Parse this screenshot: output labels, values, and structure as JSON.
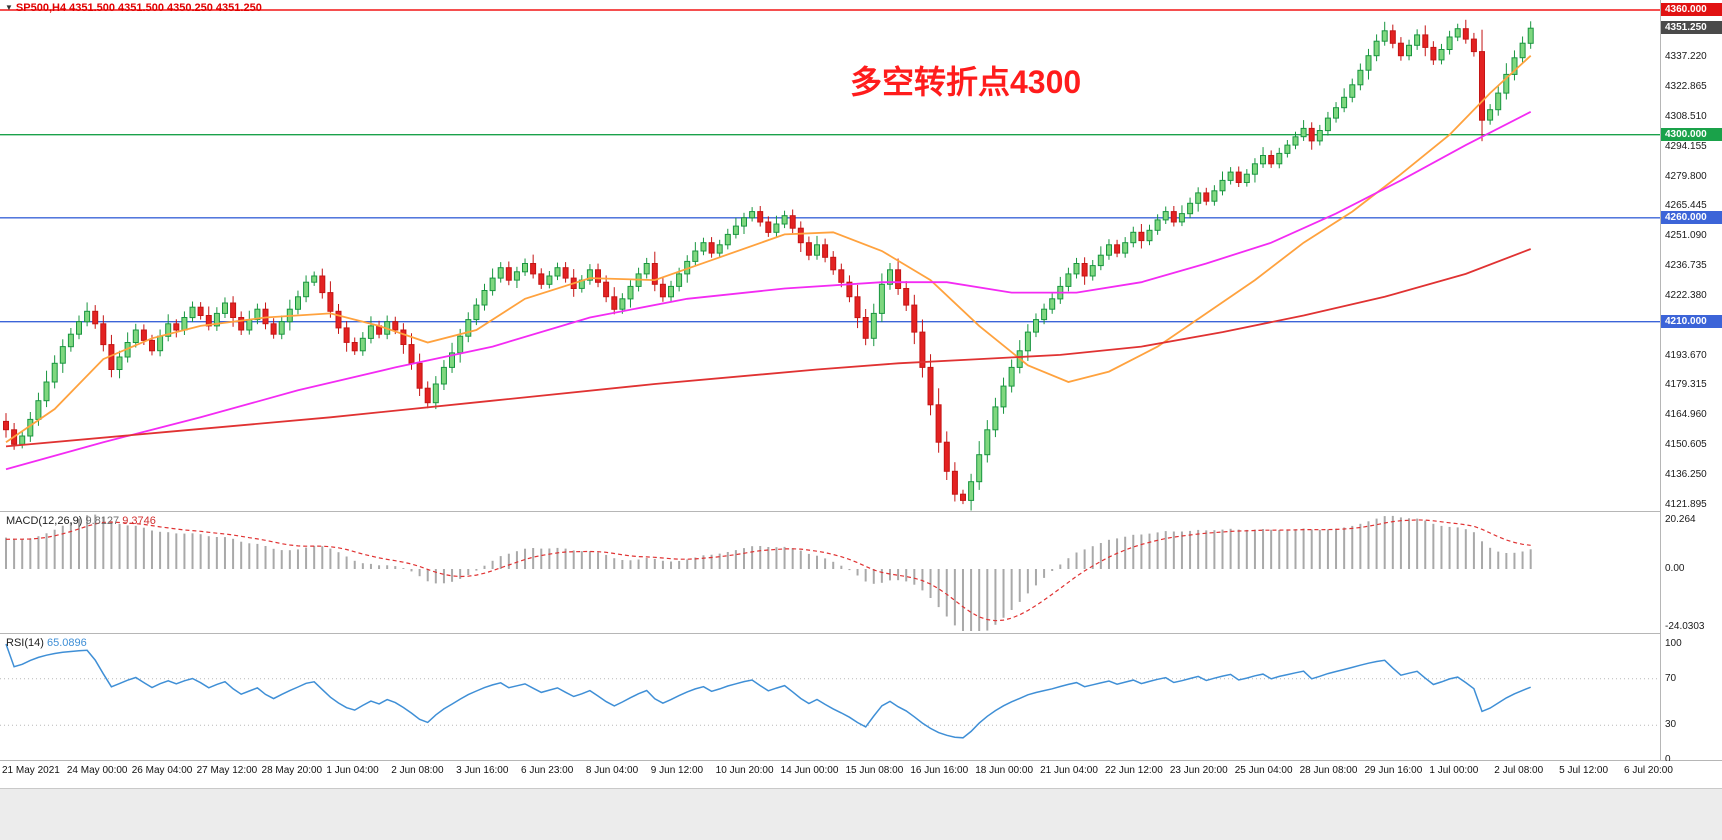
{
  "header": {
    "ohlc_line": "SP500,H4 4351.500 4351.500 4350.250 4351.250",
    "marker_icon": "▼"
  },
  "annotation": {
    "text": "多空转折点4300",
    "color": "#ff1c1c"
  },
  "chart_data": {
    "type": "candlestick",
    "symbol": "SP500",
    "timeframe": "H4",
    "current_bar": {
      "open": 4351.5,
      "high": 4351.5,
      "low": 4350.25,
      "close": 4351.25
    },
    "first_open": 4162,
    "closes": [
      4158,
      4151,
      4155,
      4163,
      4172,
      4181,
      4190,
      4198,
      4204,
      4210,
      4215,
      4209,
      4199,
      4187,
      4193,
      4200,
      4206,
      4201,
      4196,
      4203,
      4209,
      4206,
      4212,
      4217,
      4213,
      4208,
      4214,
      4219,
      4212,
      4206,
      4211,
      4216,
      4209,
      4204,
      4210,
      4216,
      4222,
      4229,
      4232,
      4224,
      4215,
      4207,
      4200,
      4196,
      4202,
      4208,
      4204,
      4210,
      4206,
      4199,
      4190,
      4178,
      4171,
      4180,
      4188,
      4195,
      4203,
      4211,
      4218,
      4225,
      4231,
      4236,
      4230,
      4234,
      4238,
      4233,
      4228,
      4232,
      4236,
      4231,
      4226,
      4230,
      4235,
      4229,
      4222,
      4216,
      4221,
      4227,
      4233,
      4238,
      4228,
      4222,
      4227,
      4233,
      4239,
      4244,
      4248,
      4243,
      4247,
      4252,
      4256,
      4260,
      4263,
      4258,
      4253,
      4257,
      4261,
      4255,
      4248,
      4242,
      4247,
      4241,
      4235,
      4229,
      4222,
      4212,
      4202,
      4214,
      4228,
      4235,
      4226,
      4218,
      4205,
      4188,
      4170,
      4152,
      4138,
      4127,
      4124,
      4133,
      4146,
      4158,
      4169,
      4179,
      4188,
      4196,
      4205,
      4211,
      4216,
      4221,
      4227,
      4233,
      4238,
      4232,
      4237,
      4242,
      4247,
      4243,
      4248,
      4253,
      4249,
      4254,
      4259,
      4263,
      4258,
      4262,
      4267,
      4272,
      4268,
      4273,
      4278,
      4282,
      4277,
      4281,
      4286,
      4290,
      4286,
      4291,
      4295,
      4299,
      4303,
      4297,
      4302,
      4308,
      4313,
      4318,
      4324,
      4331,
      4338,
      4345,
      4350,
      4344,
      4338,
      4343,
      4348,
      4342,
      4336,
      4341,
      4347,
      4351,
      4346,
      4340,
      4307,
      4312,
      4320,
      4329,
      4337,
      4344,
      4351.25
    ],
    "time_labels": [
      "21 May 2021",
      "24 May 00:00",
      "26 May 04:00",
      "27 May 12:00",
      "28 May 20:00",
      "1 Jun 04:00",
      "2 Jun 08:00",
      "3 Jun 16:00",
      "6 Jun 23:00",
      "8 Jun 04:00",
      "9 Jun 12:00",
      "10 Jun 20:00",
      "14 Jun 00:00",
      "15 Jun 08:00",
      "16 Jun 16:00",
      "18 Jun 00:00",
      "21 Jun 04:00",
      "22 Jun 12:00",
      "23 Jun 20:00",
      "25 Jun 04:00",
      "28 Jun 08:00",
      "29 Jun 16:00",
      "1 Jul 00:00",
      "2 Jul 08:00",
      "5 Jul 12:00",
      "6 Jul 20:00"
    ],
    "price_axis": {
      "ticks": [
        4337.22,
        4322.865,
        4308.51,
        4294.155,
        4279.8,
        4265.445,
        4251.09,
        4236.735,
        4222.38,
        4208.025,
        4193.67,
        4179.315,
        4164.96,
        4150.605,
        4136.25,
        4121.895
      ],
      "badges": [
        {
          "price": 4360,
          "text": "4360.000",
          "color": "#e11212"
        },
        {
          "price": 4351.25,
          "text": "4351.250",
          "color": "#4a4a4a"
        },
        {
          "price": 4300,
          "text": "4300.000",
          "color": "#1aa24a"
        },
        {
          "price": 4260,
          "text": "4260.000",
          "color": "#3c64d8"
        },
        {
          "price": 4210,
          "text": "4210.000",
          "color": "#3c64d8"
        }
      ]
    },
    "hlines": [
      {
        "price": 4360,
        "color": "#f21515"
      },
      {
        "price": 4300,
        "color": "#1aa24a"
      },
      {
        "price": 4260,
        "color": "#3c64d8"
      },
      {
        "price": 4210,
        "color": "#3c64d8"
      }
    ],
    "moving_averages": [
      {
        "name": "ma-fast",
        "color": "#ffa23e",
        "points": [
          [
            0,
            4152
          ],
          [
            6,
            4168
          ],
          [
            12,
            4192
          ],
          [
            18,
            4202
          ],
          [
            24,
            4208
          ],
          [
            32,
            4212
          ],
          [
            40,
            4214
          ],
          [
            46,
            4208
          ],
          [
            52,
            4200
          ],
          [
            58,
            4206
          ],
          [
            64,
            4221
          ],
          [
            72,
            4231
          ],
          [
            80,
            4230
          ],
          [
            88,
            4241
          ],
          [
            96,
            4252
          ],
          [
            102,
            4253
          ],
          [
            108,
            4244
          ],
          [
            114,
            4230
          ],
          [
            120,
            4208
          ],
          [
            126,
            4189
          ],
          [
            131,
            4181
          ],
          [
            136,
            4186
          ],
          [
            142,
            4198
          ],
          [
            148,
            4214
          ],
          [
            154,
            4230
          ],
          [
            160,
            4248
          ],
          [
            166,
            4263
          ],
          [
            172,
            4281
          ],
          [
            178,
            4300
          ],
          [
            183,
            4320
          ],
          [
            188,
            4338
          ]
        ]
      },
      {
        "name": "ma-medium",
        "color": "#f32bf3",
        "points": [
          [
            0,
            4139
          ],
          [
            12,
            4152
          ],
          [
            24,
            4164
          ],
          [
            36,
            4177
          ],
          [
            48,
            4188
          ],
          [
            60,
            4198
          ],
          [
            72,
            4212
          ],
          [
            84,
            4221
          ],
          [
            96,
            4226
          ],
          [
            108,
            4229
          ],
          [
            116,
            4229
          ],
          [
            124,
            4224
          ],
          [
            132,
            4224
          ],
          [
            140,
            4229
          ],
          [
            148,
            4238
          ],
          [
            156,
            4248
          ],
          [
            164,
            4262
          ],
          [
            172,
            4278
          ],
          [
            180,
            4295
          ],
          [
            188,
            4311
          ]
        ]
      },
      {
        "name": "ma-slow",
        "color": "#e03232",
        "points": [
          [
            0,
            4150
          ],
          [
            20,
            4157
          ],
          [
            40,
            4164
          ],
          [
            60,
            4172
          ],
          [
            80,
            4180
          ],
          [
            100,
            4187
          ],
          [
            110,
            4190
          ],
          [
            120,
            4192
          ],
          [
            130,
            4194
          ],
          [
            140,
            4198
          ],
          [
            150,
            4205
          ],
          [
            160,
            4213
          ],
          [
            170,
            4222
          ],
          [
            180,
            4233
          ],
          [
            188,
            4245
          ]
        ]
      }
    ],
    "candle_colors": {
      "up_fill": "#7fd77f",
      "up_stroke": "#18953f",
      "down_fill": "#e32222",
      "down_stroke": "#c41414"
    },
    "macd": {
      "label": "MACD(12,26,9)",
      "value_main": "9.8127",
      "value_signal": "9.3746",
      "params": [
        12,
        26,
        9
      ],
      "hist_color": "#a9a9a9",
      "signal_color": "#e03232",
      "scale": [
        {
          "text": "20.264",
          "v": 20.264
        },
        {
          "text": "0.00",
          "v": 0
        },
        {
          "text": "-24.0303",
          "v": -24.0303
        }
      ]
    },
    "rsi": {
      "label": "RSI(14)",
      "value": "65.0896",
      "period": 14,
      "color": "#3f8fd6",
      "levels": [
        70,
        30
      ],
      "scale": [
        {
          "text": "100",
          "v": 100
        },
        {
          "text": "70",
          "v": 70
        },
        {
          "text": "30",
          "v": 30
        },
        {
          "text": "0",
          "v": 0
        }
      ]
    }
  }
}
